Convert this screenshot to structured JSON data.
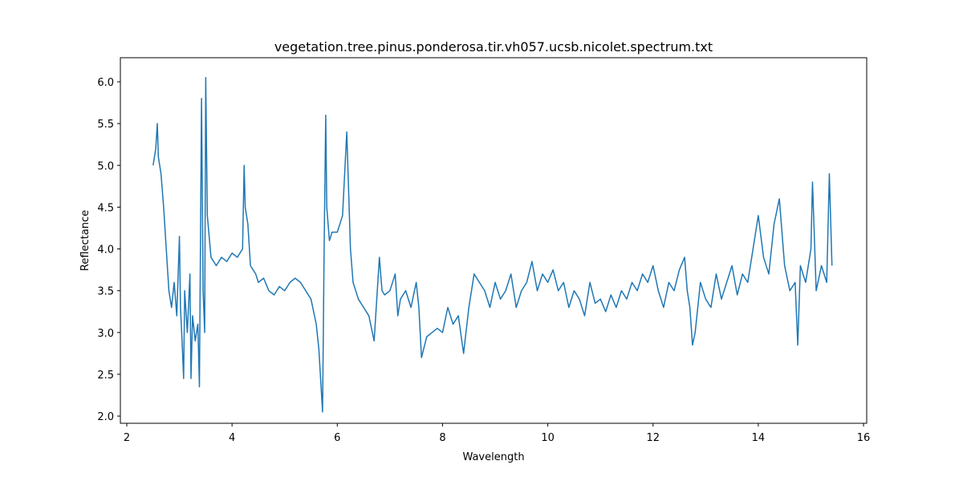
{
  "chart_data": {
    "type": "line",
    "title": "vegetation.tree.pinus.ponderosa.tir.vh057.ucsb.nicolet.spectrum.txt",
    "x_label": "Wavelength",
    "y_label": "Reflectance",
    "x": [
      2.5,
      2.55,
      2.58,
      2.6,
      2.65,
      2.7,
      2.75,
      2.8,
      2.85,
      2.9,
      2.95,
      3.0,
      3.02,
      3.05,
      3.08,
      3.1,
      3.15,
      3.2,
      3.22,
      3.25,
      3.3,
      3.35,
      3.38,
      3.42,
      3.45,
      3.48,
      3.5,
      3.53,
      3.6,
      3.7,
      3.8,
      3.9,
      4.0,
      4.1,
      4.2,
      4.23,
      4.25,
      4.3,
      4.35,
      4.45,
      4.5,
      4.6,
      4.7,
      4.8,
      4.9,
      5.0,
      5.1,
      5.2,
      5.3,
      5.4,
      5.5,
      5.6,
      5.65,
      5.72,
      5.75,
      5.78,
      5.8,
      5.85,
      5.9,
      6.0,
      6.1,
      6.18,
      6.2,
      6.25,
      6.3,
      6.4,
      6.5,
      6.6,
      6.7,
      6.75,
      6.8,
      6.85,
      6.9,
      7.0,
      7.1,
      7.15,
      7.2,
      7.3,
      7.4,
      7.5,
      7.55,
      7.6,
      7.7,
      7.8,
      7.9,
      8.0,
      8.1,
      8.2,
      8.3,
      8.4,
      8.5,
      8.6,
      8.7,
      8.8,
      8.9,
      9.0,
      9.1,
      9.2,
      9.3,
      9.4,
      9.5,
      9.6,
      9.7,
      9.8,
      9.9,
      10.0,
      10.1,
      10.2,
      10.3,
      10.4,
      10.5,
      10.6,
      10.7,
      10.8,
      10.9,
      11.0,
      11.1,
      11.2,
      11.3,
      11.4,
      11.5,
      11.6,
      11.7,
      11.8,
      11.9,
      12.0,
      12.1,
      12.2,
      12.3,
      12.4,
      12.5,
      12.6,
      12.65,
      12.7,
      12.75,
      12.8,
      12.9,
      13.0,
      13.1,
      13.2,
      13.3,
      13.4,
      13.5,
      13.6,
      13.7,
      13.8,
      13.9,
      14.0,
      14.1,
      14.2,
      14.3,
      14.4,
      14.5,
      14.6,
      14.7,
      14.75,
      14.8,
      14.9,
      15.0,
      15.03,
      15.1,
      15.2,
      15.3,
      15.35,
      15.4
    ],
    "series": [
      {
        "name": "Reflectance",
        "color": "#1f77b4",
        "values": [
          5.0,
          5.2,
          5.5,
          5.1,
          4.9,
          4.5,
          4.0,
          3.5,
          3.3,
          3.6,
          3.2,
          4.15,
          3.3,
          2.9,
          2.45,
          3.5,
          3.0,
          3.7,
          2.45,
          3.2,
          2.9,
          3.1,
          2.35,
          5.8,
          3.5,
          3.0,
          6.05,
          4.4,
          3.9,
          3.8,
          3.9,
          3.85,
          3.95,
          3.9,
          4.0,
          5.0,
          4.5,
          4.3,
          3.8,
          3.7,
          3.6,
          3.65,
          3.5,
          3.45,
          3.55,
          3.5,
          3.6,
          3.65,
          3.6,
          3.5,
          3.4,
          3.1,
          2.8,
          2.05,
          4.0,
          5.6,
          4.5,
          4.1,
          4.2,
          4.2,
          4.4,
          5.4,
          5.0,
          4.0,
          3.6,
          3.4,
          3.3,
          3.2,
          2.9,
          3.4,
          3.9,
          3.5,
          3.45,
          3.5,
          3.7,
          3.2,
          3.4,
          3.5,
          3.3,
          3.6,
          3.3,
          2.7,
          2.95,
          3.0,
          3.05,
          3.0,
          3.3,
          3.1,
          3.2,
          2.75,
          3.3,
          3.7,
          3.6,
          3.5,
          3.3,
          3.6,
          3.4,
          3.5,
          3.7,
          3.3,
          3.5,
          3.6,
          3.85,
          3.5,
          3.7,
          3.6,
          3.75,
          3.5,
          3.6,
          3.3,
          3.5,
          3.4,
          3.2,
          3.6,
          3.35,
          3.4,
          3.25,
          3.45,
          3.3,
          3.5,
          3.4,
          3.6,
          3.5,
          3.7,
          3.6,
          3.8,
          3.5,
          3.3,
          3.6,
          3.5,
          3.75,
          3.9,
          3.5,
          3.3,
          2.85,
          3.0,
          3.6,
          3.4,
          3.3,
          3.7,
          3.4,
          3.6,
          3.8,
          3.45,
          3.7,
          3.6,
          4.0,
          4.4,
          3.9,
          3.7,
          4.3,
          4.6,
          3.8,
          3.5,
          3.6,
          2.85,
          3.8,
          3.6,
          4.0,
          4.8,
          3.5,
          3.8,
          3.6,
          4.9,
          3.8
        ]
      }
    ],
    "xlim": [
      1.878,
      16.06
    ],
    "ylim": [
      1.914,
      6.288
    ],
    "xticks": [
      2,
      4,
      6,
      8,
      10,
      12,
      14,
      16
    ],
    "yticks": [
      {
        "value": 2,
        "label": "2.0"
      },
      {
        "value": 2.5,
        "label": "2.5"
      },
      {
        "value": 3,
        "label": "3.0"
      },
      {
        "value": 3.5,
        "label": "3.5"
      },
      {
        "value": 4,
        "label": "4.0"
      },
      {
        "value": 4.5,
        "label": "4.5"
      },
      {
        "value": 5,
        "label": "5.0"
      },
      {
        "value": 5.5,
        "label": "5.5"
      },
      {
        "value": 6,
        "label": "6.0"
      }
    ],
    "grid": false
  }
}
